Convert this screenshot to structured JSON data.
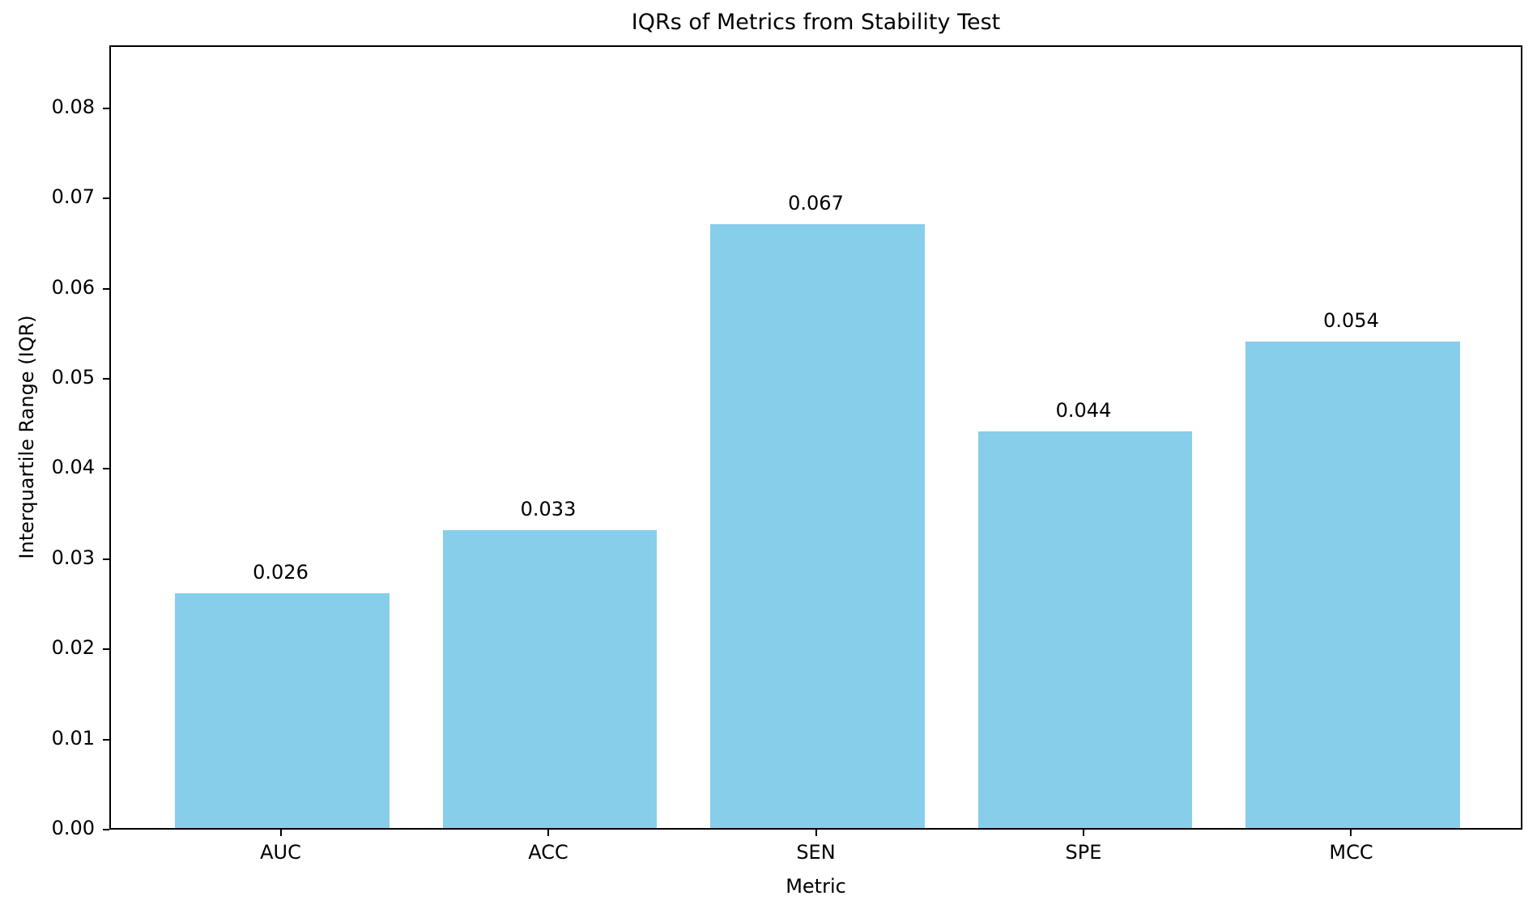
{
  "chart_data": {
    "type": "bar",
    "title": "IQRs of Metrics from Stability Test",
    "xlabel": "Metric",
    "ylabel": "Interquartile Range (IQR)",
    "categories": [
      "AUC",
      "ACC",
      "SEN",
      "SPE",
      "MCC"
    ],
    "values": [
      0.026,
      0.033,
      0.067,
      0.044,
      0.054
    ],
    "bar_labels": [
      "0.026",
      "0.033",
      "0.067",
      "0.044",
      "0.054"
    ],
    "yticks": [
      0.0,
      0.01,
      0.02,
      0.03,
      0.04,
      0.05,
      0.06,
      0.07,
      0.08
    ],
    "ytick_labels": [
      "0.00",
      "0.01",
      "0.02",
      "0.03",
      "0.04",
      "0.05",
      "0.06",
      "0.07",
      "0.08"
    ],
    "ylim": [
      0,
      0.087
    ],
    "grid": false,
    "legend_position": "none",
    "bar_color": "#87CEEB",
    "text_color": "#000000"
  }
}
